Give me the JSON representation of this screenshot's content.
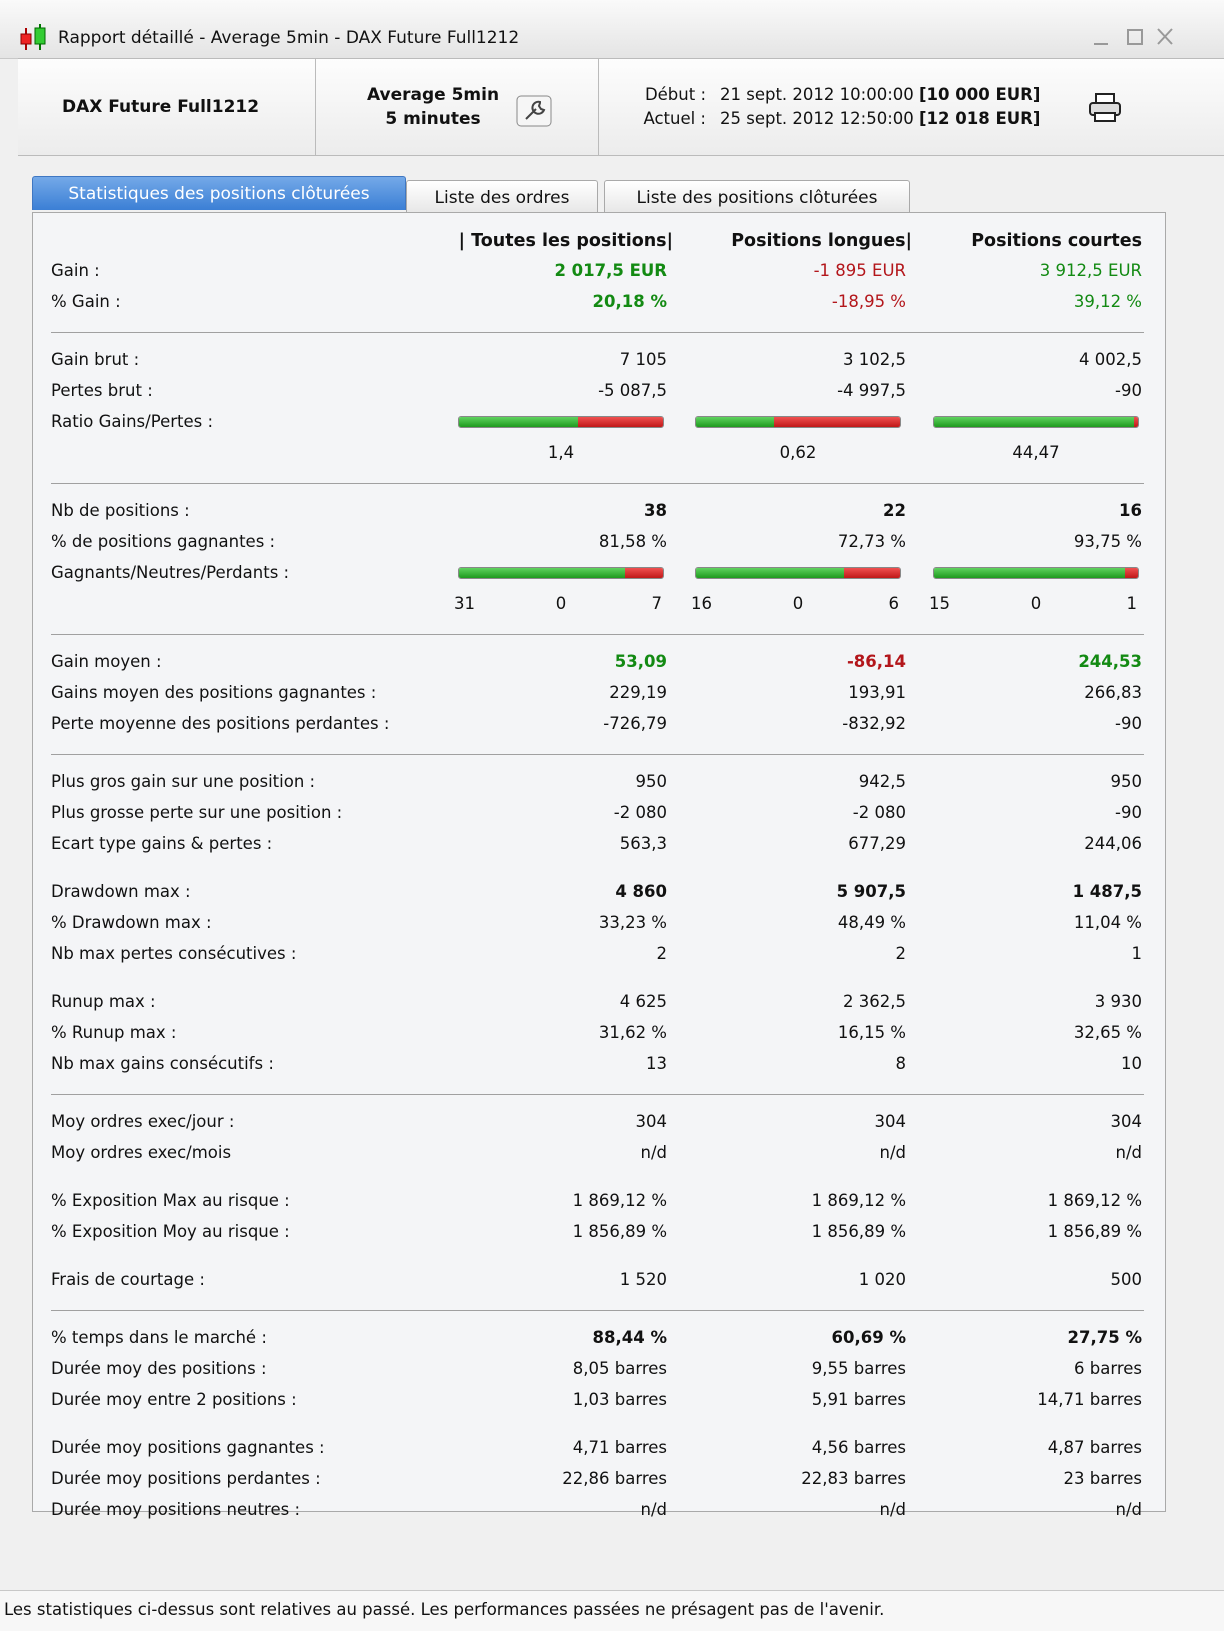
{
  "window": {
    "title": "Rapport détaillé - Average 5min - DAX Future Full1212"
  },
  "header": {
    "instrument": "DAX Future Full1212",
    "strategy": [
      "Average 5min",
      "5 minutes"
    ],
    "debut_label": "Début :",
    "debut": "21 sept. 2012 10:00:00",
    "debut_capital": "[10 000 EUR]",
    "actuel_label": "Actuel :",
    "actuel": "25 sept. 2012 12:50:00",
    "actuel_capital": "[12 018 EUR]"
  },
  "tabs": {
    "items": [
      "Statistiques des positions clôturées",
      "Liste des ordres",
      "Liste des positions clôturées"
    ],
    "active": 0
  },
  "table": {
    "columns": [
      "| Toutes les positions|",
      "Positions longues|",
      "Positions courtes"
    ],
    "groups": [
      {
        "divider": true,
        "rows": [
          {
            "label": "Gain :",
            "values": [
              "2 017,5 EUR",
              "-1 895 EUR",
              "3 912,5 EUR"
            ],
            "bold": [
              true,
              false,
              false
            ],
            "colors": [
              "#138a13",
              "#b3161b",
              "#138a13"
            ]
          },
          {
            "label": "% Gain :",
            "values": [
              "20,18 %",
              "-18,95 %",
              "39,12 %"
            ],
            "bold": [
              true,
              false,
              false
            ],
            "colors": [
              "#138a13",
              "#b3161b",
              "#138a13"
            ]
          }
        ]
      },
      {
        "divider": true,
        "rows": [
          {
            "label": "Gain brut :",
            "values": [
              "7 105",
              "3 102,5",
              "4 002,5"
            ]
          },
          {
            "label": "Pertes brut :",
            "values": [
              "-5 087,5",
              "-4 997,5",
              "-90"
            ]
          },
          {
            "label": "Ratio Gains/Pertes :",
            "kind": "ratio",
            "values": [
              "1,4",
              "0,62",
              "44,47"
            ]
          }
        ]
      },
      {
        "divider": true,
        "rows": [
          {
            "label": "Nb de positions :",
            "values": [
              "38",
              "22",
              "16"
            ],
            "bold": [
              true,
              true,
              true
            ]
          },
          {
            "label": "% de positions gagnantes :",
            "values": [
              "81,58 %",
              "72,73 %",
              "93,75 %"
            ]
          },
          {
            "label": "Gagnants/Neutres/Perdants :",
            "kind": "counts",
            "counts": [
              [
                31,
                0,
                7
              ],
              [
                16,
                0,
                6
              ],
              [
                15,
                0,
                1
              ]
            ]
          }
        ]
      },
      {
        "divider": true,
        "rows": [
          {
            "label": "Gain moyen :",
            "values": [
              "53,09",
              "-86,14",
              "244,53"
            ],
            "bold": [
              true,
              true,
              true
            ],
            "colors": [
              "#138a13",
              "#b3161b",
              "#138a13"
            ]
          },
          {
            "label": "Gains moyen des positions gagnantes :",
            "values": [
              "229,19",
              "193,91",
              "266,83"
            ]
          },
          {
            "label": "Perte moyenne des positions perdantes :",
            "values": [
              "-726,79",
              "-832,92",
              "-90"
            ]
          }
        ]
      },
      {
        "divider": false,
        "rows": [
          {
            "label": "Plus gros gain sur une position :",
            "values": [
              "950",
              "942,5",
              "950"
            ]
          },
          {
            "label": "Plus grosse perte sur une position :",
            "values": [
              "-2 080",
              "-2 080",
              "-90"
            ]
          },
          {
            "label": "Ecart type gains & pertes :",
            "values": [
              "563,3",
              "677,29",
              "244,06"
            ]
          }
        ]
      },
      {
        "divider": false,
        "rows": [
          {
            "label": "Drawdown max :",
            "values": [
              "4 860",
              "5 907,5",
              "1 487,5"
            ],
            "bold": [
              true,
              true,
              true
            ]
          },
          {
            "label": "% Drawdown max :",
            "values": [
              "33,23 %",
              "48,49 %",
              "11,04 %"
            ]
          },
          {
            "label": "Nb max pertes consécutives :",
            "values": [
              "2",
              "2",
              "1"
            ]
          }
        ]
      },
      {
        "divider": true,
        "rows": [
          {
            "label": "Runup max :",
            "values": [
              "4 625",
              "2 362,5",
              "3 930"
            ]
          },
          {
            "label": "% Runup max :",
            "values": [
              "31,62 %",
              "16,15 %",
              "32,65 %"
            ]
          },
          {
            "label": "Nb max gains consécutifs :",
            "values": [
              "13",
              "8",
              "10"
            ]
          }
        ]
      },
      {
        "divider": false,
        "rows": [
          {
            "label": "Moy ordres exec/jour :",
            "values": [
              "304",
              "304",
              "304"
            ]
          },
          {
            "label": "Moy ordres exec/mois",
            "values": [
              "n/d",
              "n/d",
              "n/d"
            ]
          }
        ]
      },
      {
        "divider": false,
        "rows": [
          {
            "label": "% Exposition Max au risque :",
            "values": [
              "1 869,12 %",
              "1 869,12 %",
              "1 869,12 %"
            ]
          },
          {
            "label": "% Exposition Moy au risque :",
            "values": [
              "1 856,89 %",
              "1 856,89 %",
              "1 856,89 %"
            ]
          }
        ]
      },
      {
        "divider": true,
        "rows": [
          {
            "label": "Frais de courtage :",
            "values": [
              "1 520",
              "1 020",
              "500"
            ]
          }
        ]
      },
      {
        "divider": false,
        "rows": [
          {
            "label": "% temps dans le marché :",
            "values": [
              "88,44 %",
              "60,69 %",
              "27,75 %"
            ],
            "bold": [
              true,
              true,
              true
            ]
          },
          {
            "label": "Durée moy des positions :",
            "values": [
              "8,05 barres",
              "9,55 barres",
              "6 barres"
            ]
          },
          {
            "label": "Durée moy entre 2 positions :",
            "values": [
              "1,03 barres",
              "5,91 barres",
              "14,71 barres"
            ]
          }
        ]
      },
      {
        "divider": false,
        "rows": [
          {
            "label": "Durée moy positions gagnantes :",
            "values": [
              "4,71 barres",
              "4,56 barres",
              "4,87 barres"
            ]
          },
          {
            "label": "Durée moy positions perdantes :",
            "values": [
              "22,86 barres",
              "22,83 barres",
              "23 barres"
            ]
          },
          {
            "label": "Durée moy positions neutres :",
            "values": [
              "n/d",
              "n/d",
              "n/d"
            ]
          }
        ]
      }
    ]
  },
  "footer": {
    "text": "Les statistiques ci-dessus sont relatives au passé. Les performances passées ne présagent pas de l'avenir."
  }
}
